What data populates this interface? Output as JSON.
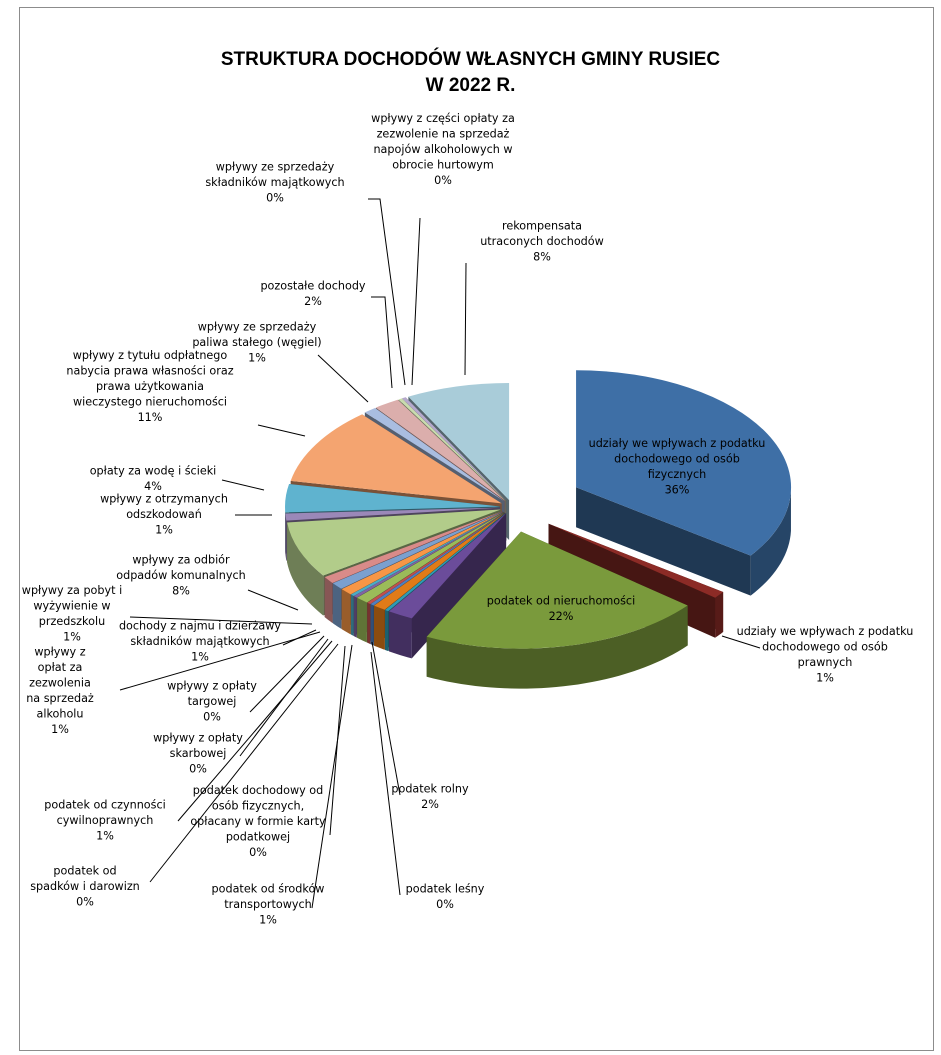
{
  "chart_data": {
    "type": "pie",
    "style": "3d-exploded",
    "title": [
      "STRUKTURA DOCHODÓW WŁASNYCH GMINY RUSIEC",
      "W 2022 R."
    ],
    "slices": [
      {
        "label": "udziały we wpływach z podatku dochodowego od osób fizycznych",
        "percent_label": "36%",
        "value": 36,
        "color": "#3e6fa6"
      },
      {
        "label": "udziały we wpływach z podatku dochodowego od osób prawnych",
        "percent_label": "1%",
        "value": 1,
        "color": "#8c2b26"
      },
      {
        "label": "podatek od nieruchomości",
        "percent_label": "22%",
        "value": 22,
        "color": "#7a9a3c"
      },
      {
        "label": "podatek rolny",
        "percent_label": "2%",
        "value": 2,
        "color": "#6b4c9a"
      },
      {
        "label": "podatek leśny",
        "percent_label": "0%",
        "value": 0.3,
        "color": "#2e9bb3"
      },
      {
        "label": "podatek od środków transportowych",
        "percent_label": "1%",
        "value": 1,
        "color": "#e07b18"
      },
      {
        "label": "podatek dochodowy od osób fizycznych, opłacany w formie karty podatkowej",
        "percent_label": "0%",
        "value": 0.3,
        "color": "#4f7fc0"
      },
      {
        "label": "podatek od spadków i darowizn",
        "percent_label": "0%",
        "value": 0.3,
        "color": "#c0504d"
      },
      {
        "label": "podatek od czynności cywilnoprawnych",
        "percent_label": "1%",
        "value": 1,
        "color": "#9bbb59"
      },
      {
        "label": "wpływy z opłaty skarbowej",
        "percent_label": "0%",
        "value": 0.3,
        "color": "#8064a2"
      },
      {
        "label": "wpływy z opłaty targowej",
        "percent_label": "0%",
        "value": 0.3,
        "color": "#4bacc6"
      },
      {
        "label": "wpływy z opłat za zezwolenia na sprzedaż alkoholu",
        "percent_label": "1%",
        "value": 1,
        "color": "#f79646"
      },
      {
        "label": "dochody z najmu i dzierżawy składników majątkowych",
        "percent_label": "1%",
        "value": 1,
        "color": "#7ba0cf"
      },
      {
        "label": "wpływy za pobyt i wyżywienie w przedszkolu",
        "percent_label": "1%",
        "value": 1,
        "color": "#d98b89"
      },
      {
        "label": "wpływy za odbiór odpadów komunalnych",
        "percent_label": "8%",
        "value": 8,
        "color": "#b2cc8a"
      },
      {
        "label": "wpływy z otrzymanych odszkodowań",
        "percent_label": "1%",
        "value": 1,
        "color": "#9b88b8"
      },
      {
        "label": "opłaty za wodę i ścieki",
        "percent_label": "4%",
        "value": 4,
        "color": "#5fb3cf"
      },
      {
        "label": "wpływy z tytułu odpłatnego nabycia prawa własności oraz prawa użytkowania wieczystego nieruchomości",
        "percent_label": "11%",
        "value": 11,
        "color": "#f4a470"
      },
      {
        "label": "wpływy ze sprzedaży paliwa stałego (węgiel)",
        "percent_label": "1%",
        "value": 1,
        "color": "#a9bde0"
      },
      {
        "label": "pozostałe dochody",
        "percent_label": "2%",
        "value": 2,
        "color": "#dbaeac"
      },
      {
        "label": "wpływy ze sprzedaży składników majątkowych",
        "percent_label": "0%",
        "value": 0.3,
        "color": "#c9dbae"
      },
      {
        "label": "wpływy z części opłaty za zezwolenie na sprzedaż napojów alkoholowych w obrocie hurtowym",
        "percent_label": "0%",
        "value": 0.3,
        "color": "#b5a8cc"
      },
      {
        "label": "rekompensata utraconych dochodów",
        "percent_label": "8%",
        "value": 8,
        "color": "#a9ccd9"
      }
    ],
    "data_labels": [
      {
        "lines": [
          "udziały we wpływach z podatku",
          "dochodowego od osób",
          "fizycznych",
          "36%"
        ],
        "color": "#ffffff"
      },
      {
        "lines": [
          "udziały we wpływach z podatku",
          "dochodowego od osób",
          "prawnych",
          "1%"
        ]
      },
      {
        "lines": [
          "podatek od nieruchomości",
          "22%"
        ]
      },
      {
        "lines": [
          "podatek rolny",
          "2%"
        ]
      },
      {
        "lines": [
          "podatek leśny",
          "0%"
        ]
      },
      {
        "lines": [
          "podatek od środków",
          "transportowych",
          "1%"
        ]
      },
      {
        "lines": [
          "podatek dochodowy od",
          "osób fizycznych,",
          "opłacany w formie karty",
          "podatkowej",
          "0%"
        ]
      },
      {
        "lines": [
          "podatek od",
          "spadków i darowizn",
          "0%"
        ]
      },
      {
        "lines": [
          "podatek od czynności",
          "cywilnoprawnych",
          "1%"
        ]
      },
      {
        "lines": [
          "wpływy z opłaty",
          "skarbowej",
          "0%"
        ]
      },
      {
        "lines": [
          "wpływy z opłaty",
          "targowej",
          "0%"
        ]
      },
      {
        "lines": [
          "wpływy z",
          "opłat za",
          "zezwolenia",
          "na sprzedaż",
          "alkoholu",
          "1%"
        ]
      },
      {
        "lines": [
          "dochody z najmu i dzierżawy",
          "składników majątkowych",
          "1%"
        ]
      },
      {
        "lines": [
          "wpływy za pobyt i",
          "wyżywienie w",
          "przedszkolu",
          "1%"
        ]
      },
      {
        "lines": [
          "wpływy za odbiór",
          "odpadów komunalnych",
          "8%"
        ]
      },
      {
        "lines": [
          "wpływy z otrzymanych",
          "odszkodowań",
          "1%"
        ]
      },
      {
        "lines": [
          "opłaty za wodę i ścieki",
          "4%"
        ]
      },
      {
        "lines": [
          "wpływy z tytułu odpłatnego",
          "nabycia prawa własności oraz",
          "prawa użytkowania",
          "wieczystego nieruchomości",
          "11%"
        ]
      },
      {
        "lines": [
          "wpływy ze sprzedaży",
          "paliwa stałego (węgiel)",
          "1%"
        ]
      },
      {
        "lines": [
          "pozostałe dochody",
          "2%"
        ]
      },
      {
        "lines": [
          "wpływy ze sprzedaży",
          "składników majątkowych",
          "0%"
        ]
      },
      {
        "lines": [
          "wpływy z części opłaty za",
          "zezwolenie na sprzedaż",
          "napojów alkoholowych w",
          "obrocie hurtowym",
          "0%"
        ]
      },
      {
        "lines": [
          "rekompensata",
          "utraconych dochodów",
          "8%"
        ]
      }
    ]
  }
}
